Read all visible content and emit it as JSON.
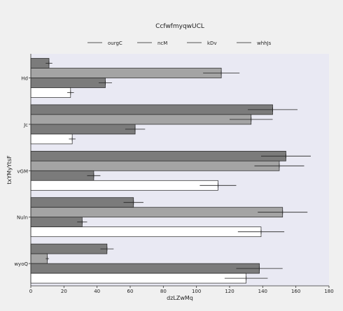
{
  "chart_data": {
    "type": "bar",
    "orientation": "horizontal",
    "title": "CcfwfmyqwUCL",
    "xlabel": "dzLZwMq",
    "ylabel": "txYMyYtsF",
    "xlim": [
      0,
      180
    ],
    "xticks": [
      0,
      20,
      40,
      60,
      80,
      100,
      120,
      140,
      160,
      180
    ],
    "legend_position": "top-center",
    "grid": false,
    "categories": [
      "Hd",
      "Jc",
      "vGM",
      "Nuln",
      "wyoQ"
    ],
    "series": [
      {
        "name": "ourgC",
        "color": "#7b7b7b",
        "values": [
          11,
          146,
          154,
          62,
          46
        ],
        "errors": [
          2,
          15,
          15,
          6,
          4
        ]
      },
      {
        "name": "ncM",
        "color": "#a4a4a4",
        "values": [
          115,
          133,
          150,
          152,
          10
        ],
        "errors": [
          11,
          13,
          15,
          15,
          1
        ]
      },
      {
        "name": "kDv",
        "color": "#7b7b7b",
        "values": [
          45,
          63,
          38,
          31,
          138
        ],
        "errors": [
          4,
          6,
          4,
          3,
          14
        ]
      },
      {
        "name": "whhJs",
        "color": "#ffffff",
        "values": [
          24,
          25,
          113,
          139,
          130
        ],
        "errors": [
          2,
          2,
          11,
          14,
          13
        ]
      }
    ]
  }
}
